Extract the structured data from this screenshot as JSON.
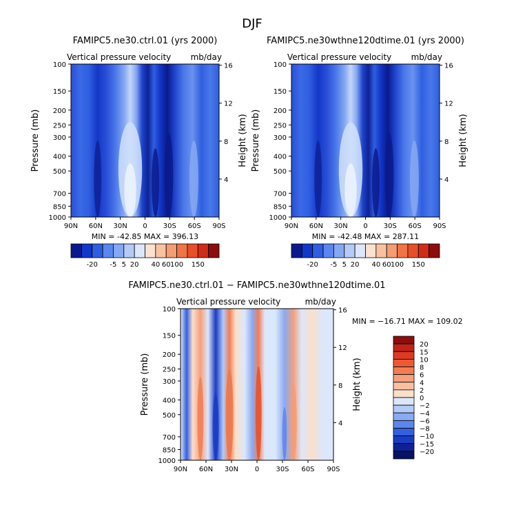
{
  "figure": {
    "title": "DJF"
  },
  "chart_data": [
    {
      "type": "heatmap",
      "title": "FAMIPC5.ne30.ctrl.01 (yrs 2000)",
      "subtitle_left": "Vertical pressure velocity",
      "subtitle_right": "mb/day",
      "ylabel": "Pressure (mb)",
      "ylabel_right": "Height (km)",
      "xticks": [
        "90N",
        "60N",
        "30N",
        "0",
        "30S",
        "60S",
        "90S"
      ],
      "xlim": [
        90,
        -90
      ],
      "yticks": [
        "100",
        "150",
        "200",
        "250",
        "300",
        "400",
        "500",
        "700",
        "850",
        "1000"
      ],
      "ylim": [
        1000,
        100
      ],
      "ylog": true,
      "yticks_right": [
        "4",
        "8",
        "12",
        "16"
      ],
      "stats": "MIN = -42.85   MAX = 396.13",
      "colorbar": {
        "orientation": "horizontal",
        "labels": [
          "-20",
          "-5",
          "5",
          "20",
          "40",
          "60",
          "100",
          "150"
        ],
        "colors": [
          "#0a1a8c",
          "#1337c8",
          "#2f5fe0",
          "#5a86ee",
          "#86a8f2",
          "#b4cbf7",
          "#dce7fb",
          "#fbe2d0",
          "#f8c2a2",
          "#f49c74",
          "#ef7549",
          "#e4502a",
          "#cf2d17",
          "#8b0d0d"
        ]
      }
    },
    {
      "type": "heatmap",
      "title": "FAMIPC5.ne30wthne120dtime.01 (yrs 2000)",
      "subtitle_left": "Vertical pressure velocity",
      "subtitle_right": "mb/day",
      "ylabel": "Pressure (mb)",
      "ylabel_right": "Height (km)",
      "xticks": [
        "90N",
        "60N",
        "30N",
        "0",
        "30S",
        "60S",
        "90S"
      ],
      "xlim": [
        90,
        -90
      ],
      "yticks": [
        "100",
        "150",
        "200",
        "250",
        "300",
        "400",
        "500",
        "700",
        "850",
        "1000"
      ],
      "ylim": [
        1000,
        100
      ],
      "ylog": true,
      "yticks_right": [
        "4",
        "8",
        "12",
        "16"
      ],
      "stats": "MIN = -42.48   MAX = 287.11",
      "colorbar": {
        "orientation": "horizontal",
        "labels": [
          "-20",
          "-5",
          "5",
          "20",
          "40",
          "60",
          "100",
          "150"
        ],
        "colors": [
          "#0a1a8c",
          "#1337c8",
          "#2f5fe0",
          "#5a86ee",
          "#86a8f2",
          "#b4cbf7",
          "#dce7fb",
          "#fbe2d0",
          "#f8c2a2",
          "#f49c74",
          "#ef7549",
          "#e4502a",
          "#cf2d17",
          "#8b0d0d"
        ]
      }
    },
    {
      "type": "heatmap",
      "title": "FAMIPC5.ne30.ctrl.01 − FAMIPC5.ne30wthne120dtime.01",
      "subtitle_left": "Vertical pressure velocity",
      "subtitle_right": "mb/day",
      "ylabel": "Pressure (mb)",
      "ylabel_right": "Height (km)",
      "xticks": [
        "90N",
        "60N",
        "30N",
        "0",
        "30S",
        "60S",
        "90S"
      ],
      "xlim": [
        90,
        -90
      ],
      "yticks": [
        "100",
        "150",
        "200",
        "250",
        "300",
        "400",
        "500",
        "700",
        "850",
        "1000"
      ],
      "ylim": [
        1000,
        100
      ],
      "ylog": true,
      "yticks_right": [
        "4",
        "8",
        "12",
        "16"
      ],
      "stats": "MIN = −16.71   MAX = 109.02",
      "colorbar": {
        "orientation": "vertical",
        "labels": [
          "20",
          "15",
          "10",
          "8",
          "6",
          "4",
          "2",
          "0",
          "−2",
          "−4",
          "−6",
          "−8",
          "−10",
          "−15",
          "−20"
        ],
        "colors": [
          "#8b0d0d",
          "#c0231a",
          "#dc3a22",
          "#ec5a35",
          "#f27d55",
          "#f5a07c",
          "#f8c0a2",
          "#fbdfca",
          "#dbe7fb",
          "#b3cbf7",
          "#8aaaf1",
          "#5d86ea",
          "#3460de",
          "#1a3cc4",
          "#0e2296",
          "#071264"
        ]
      }
    }
  ]
}
